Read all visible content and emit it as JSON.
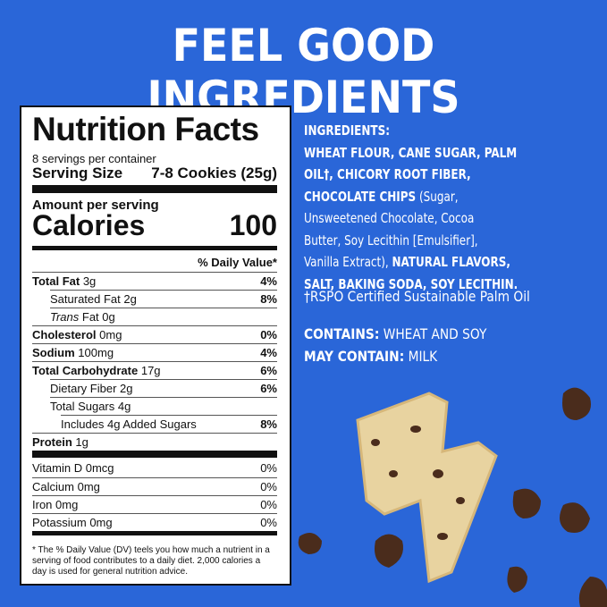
{
  "headline": "FEEL GOOD INGREDIENTS",
  "colors": {
    "background": "#2a66d8",
    "text": "#ffffff",
    "label_bg": "#ffffff",
    "chocolate": "#4a2c1c",
    "cookie": "#e8d3a0"
  },
  "nutrition": {
    "title": "Nutrition Facts",
    "servings": "8 servings per container",
    "serving_size_label": "Serving Size",
    "serving_size_value": "7-8 Cookies (25g)",
    "amount_per_serving": "Amount per serving",
    "calories_label": "Calories",
    "calories_value": "100",
    "dv_header": "% Daily Value*",
    "rows": [
      {
        "name": "Total Fat",
        "amount": "3g",
        "dv": "4%"
      },
      {
        "name": "Saturated Fat",
        "amount": "2g",
        "dv": "8%"
      },
      {
        "name": "Trans",
        "suffix": "Fat 0g",
        "dv": ""
      },
      {
        "name": "Cholesterol",
        "amount": "0mg",
        "dv": "0%"
      },
      {
        "name": "Sodium",
        "amount": "100mg",
        "dv": "4%"
      },
      {
        "name": "Total Carbohydrate",
        "amount": "17g",
        "dv": "6%"
      },
      {
        "name": "Dietary Fiber",
        "amount": "2g",
        "dv": "6%"
      },
      {
        "name": "Total Sugars",
        "amount": "4g",
        "dv": ""
      },
      {
        "name": "Includes 4g Added Sugars",
        "amount": "",
        "dv": "8%"
      },
      {
        "name": "Protein",
        "amount": "1g",
        "dv": ""
      }
    ],
    "vitamins": [
      {
        "name": "Vitamin D",
        "amount": "0mcg",
        "dv": "0%"
      },
      {
        "name": "Calcium",
        "amount": "0mg",
        "dv": "0%"
      },
      {
        "name": "Iron",
        "amount": "0mg",
        "dv": "0%"
      },
      {
        "name": "Potassium",
        "amount": "0mg",
        "dv": "0%"
      }
    ],
    "footnote": "* The % Daily Value (DV) teels you how much a nutrient in a serving of food contributes to a daily diet. 2,000 calories a day is used for general nutrition advice."
  },
  "ingredients": {
    "lines": [
      [
        {
          "t": "INGREDIENTS:",
          "b": true
        }
      ],
      [
        {
          "t": "WHEAT FLOUR, CANE SUGAR, PALM",
          "b": true
        }
      ],
      [
        {
          "t": "OIL†, CHICORY ROOT FIBER,",
          "b": true
        }
      ],
      [
        {
          "t": "CHOCOLATE CHIPS",
          "b": true
        },
        {
          "t": " (Sugar,",
          "b": false
        }
      ],
      [
        {
          "t": "Unsweetened Chocolate, Cocoa",
          "b": false
        }
      ],
      [
        {
          "t": "Butter, Soy Lecithin [Emulsifier],",
          "b": false
        }
      ],
      [
        {
          "t": "Vanilla Extract), ",
          "b": false
        },
        {
          "t": "NATURAL FLAVORS,",
          "b": true
        }
      ],
      [
        {
          "t": "SALT, BAKING SODA, SOY LECITHIN.",
          "b": true
        }
      ]
    ],
    "palm_note": "†RSPO Certified Sustainable Palm Oil",
    "contains_label": "CONTAINS:",
    "contains_value": " WHEAT AND SOY",
    "may_contain_label": "MAY CONTAIN:",
    "may_contain_value": " MILK"
  }
}
